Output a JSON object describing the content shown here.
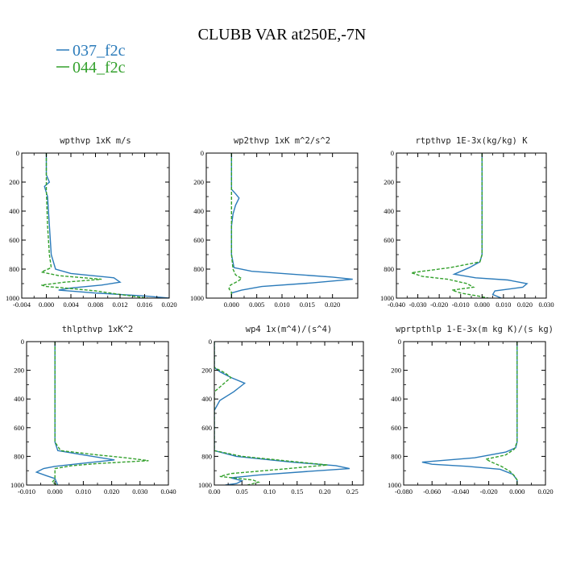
{
  "figure": {
    "title": "CLUBB VAR at250E,-7N",
    "legend": [
      {
        "label": "037_f2c",
        "color": "#2b7bba"
      },
      {
        "label": "044_f2c",
        "color": "#33a02c"
      }
    ]
  },
  "colors": {
    "series_037": "#2b7bba",
    "series_044": "#33a02c",
    "axis": "#000000"
  },
  "chart_data": [
    {
      "type": "line",
      "title": "wpthvp  1xK m/s",
      "xlim": [
        -0.004,
        0.02
      ],
      "ylim": [
        1000,
        0
      ],
      "xticks": [
        -0.004,
        0.0,
        0.004,
        0.008,
        0.012,
        0.016,
        0.02
      ],
      "xtick_labels": [
        "-0.004",
        "0.000",
        "0.004",
        "0.008",
        "0.012",
        "0.016",
        "0.020"
      ],
      "yticks": [
        0,
        200,
        400,
        600,
        800,
        1000
      ],
      "ytick_labels": [
        "0",
        "200",
        "400",
        "600",
        "800",
        "1000"
      ],
      "series": [
        {
          "name": "037_f2c",
          "style": "solid",
          "points": [
            [
              0.0,
              0
            ],
            [
              0.0,
              150
            ],
            [
              0.0005,
              200
            ],
            [
              -0.0003,
              230
            ],
            [
              0.0002,
              300
            ],
            [
              0.0005,
              500
            ],
            [
              0.0008,
              700
            ],
            [
              0.0015,
              800
            ],
            [
              0.004,
              830
            ],
            [
              0.011,
              860
            ],
            [
              0.012,
              890
            ],
            [
              0.009,
              910
            ],
            [
              0.004,
              930
            ],
            [
              0.002,
              945
            ],
            [
              0.008,
              965
            ],
            [
              0.016,
              985
            ],
            [
              0.02,
              1000
            ]
          ]
        },
        {
          "name": "044_f2c",
          "style": "dashed",
          "points": [
            [
              0.0,
              0
            ],
            [
              0.0,
              150
            ],
            [
              0.0,
              250
            ],
            [
              0.0002,
              500
            ],
            [
              0.0005,
              700
            ],
            [
              0.0008,
              790
            ],
            [
              -0.0008,
              820
            ],
            [
              0.002,
              845
            ],
            [
              0.009,
              870
            ],
            [
              0.003,
              890
            ],
            [
              -0.0008,
              910
            ],
            [
              0.0,
              920
            ],
            [
              0.003,
              930
            ],
            [
              0.008,
              950
            ],
            [
              0.012,
              975
            ],
            [
              0.0165,
              1000
            ]
          ]
        }
      ]
    },
    {
      "type": "line",
      "title": "wp2thvp  1xK m^2/s^2",
      "xlim": [
        -0.005,
        0.025
      ],
      "ylim": [
        1000,
        0
      ],
      "xticks": [
        0.0,
        0.005,
        0.01,
        0.015,
        0.02
      ],
      "xtick_labels": [
        "0.000",
        "0.005",
        "0.010",
        "0.015",
        "0.020"
      ],
      "yticks": [
        0,
        200,
        400,
        600,
        800,
        1000
      ],
      "ytick_labels": [
        "0",
        "200",
        "400",
        "600",
        "800",
        "1000"
      ],
      "series": [
        {
          "name": "037_f2c",
          "style": "solid",
          "points": [
            [
              0.0,
              0
            ],
            [
              0.0,
              250
            ],
            [
              0.0008,
              280
            ],
            [
              0.0015,
              310
            ],
            [
              0.0008,
              360
            ],
            [
              0.0003,
              420
            ],
            [
              0.0,
              500
            ],
            [
              0.0,
              700
            ],
            [
              0.0005,
              790
            ],
            [
              0.004,
              815
            ],
            [
              0.012,
              835
            ],
            [
              0.02,
              855
            ],
            [
              0.024,
              870
            ],
            [
              0.016,
              895
            ],
            [
              0.006,
              920
            ],
            [
              0.002,
              945
            ],
            [
              0.0,
              965
            ],
            [
              0.0,
              1000
            ]
          ]
        },
        {
          "name": "044_f2c",
          "style": "dashed",
          "points": [
            [
              0.0,
              0
            ],
            [
              0.0,
              700
            ],
            [
              0.0003,
              800
            ],
            [
              0.0008,
              840
            ],
            [
              0.002,
              865
            ],
            [
              0.0012,
              885
            ],
            [
              -0.0002,
              910
            ],
            [
              -0.0005,
              935
            ],
            [
              0.0,
              960
            ],
            [
              0.0,
              1000
            ]
          ]
        }
      ]
    },
    {
      "type": "line",
      "title": "rtpthvp  1E-3x(kg/kg) K",
      "xlim": [
        -0.04,
        0.03
      ],
      "ylim": [
        1000,
        0
      ],
      "xticks": [
        -0.04,
        -0.03,
        -0.02,
        -0.01,
        0.0,
        0.01,
        0.02,
        0.03
      ],
      "xtick_labels": [
        "-0.040",
        "-0.030",
        "-0.020",
        "-0.010",
        "0.000",
        "0.010",
        "0.020",
        "0.030"
      ],
      "yticks": [
        0,
        200,
        400,
        600,
        800,
        1000
      ],
      "ytick_labels": [
        "0",
        "200",
        "400",
        "600",
        "800",
        "1000"
      ],
      "series": [
        {
          "name": "037_f2c",
          "style": "solid",
          "points": [
            [
              0.0,
              0
            ],
            [
              0.0,
              700
            ],
            [
              -0.001,
              750
            ],
            [
              -0.006,
              790
            ],
            [
              -0.013,
              835
            ],
            [
              -0.003,
              860
            ],
            [
              0.012,
              875
            ],
            [
              0.021,
              900
            ],
            [
              0.019,
              925
            ],
            [
              0.006,
              950
            ],
            [
              0.005,
              975
            ],
            [
              0.009,
              1000
            ]
          ]
        },
        {
          "name": "044_f2c",
          "style": "dashed",
          "points": [
            [
              0.0,
              0
            ],
            [
              0.0,
              700
            ],
            [
              -0.001,
              750
            ],
            [
              -0.015,
              790
            ],
            [
              -0.033,
              825
            ],
            [
              -0.028,
              850
            ],
            [
              -0.016,
              870
            ],
            [
              -0.007,
              900
            ],
            [
              -0.004,
              925
            ],
            [
              -0.014,
              945
            ],
            [
              -0.01,
              965
            ],
            [
              -0.002,
              985
            ],
            [
              0.003,
              1000
            ]
          ]
        }
      ]
    },
    {
      "type": "line",
      "title": "thlpthvp  1xK^2",
      "xlim": [
        -0.01,
        0.04
      ],
      "ylim": [
        1000,
        0
      ],
      "xticks": [
        -0.01,
        0.0,
        0.01,
        0.02,
        0.03,
        0.04
      ],
      "xtick_labels": [
        "-0.010",
        "0.000",
        "0.010",
        "0.020",
        "0.030",
        "0.040"
      ],
      "yticks": [
        0,
        200,
        400,
        600,
        800,
        1000
      ],
      "ytick_labels": [
        "0",
        "200",
        "400",
        "600",
        "800",
        "1000"
      ],
      "series": [
        {
          "name": "037_f2c",
          "style": "solid",
          "points": [
            [
              0.0,
              0
            ],
            [
              0.0,
              700
            ],
            [
              0.001,
              760
            ],
            [
              0.01,
              790
            ],
            [
              0.021,
              825
            ],
            [
              0.009,
              850
            ],
            [
              0.0,
              870
            ],
            [
              -0.004,
              885
            ],
            [
              -0.0065,
              910
            ],
            [
              -0.003,
              935
            ],
            [
              0.0,
              955
            ],
            [
              0.001,
              1000
            ]
          ]
        },
        {
          "name": "044_f2c",
          "style": "dashed",
          "points": [
            [
              0.0,
              0
            ],
            [
              0.0,
              700
            ],
            [
              0.002,
              760
            ],
            [
              0.015,
              790
            ],
            [
              0.025,
              810
            ],
            [
              0.033,
              830
            ],
            [
              0.015,
              850
            ],
            [
              0.006,
              865
            ],
            [
              0.0,
              885
            ],
            [
              0.0,
              960
            ],
            [
              -0.001,
              980
            ],
            [
              0.001,
              1000
            ]
          ]
        }
      ]
    },
    {
      "type": "line",
      "title": "wp4  1x(m^4)/(s^4)",
      "xlim": [
        0.0,
        0.27
      ],
      "ylim": [
        1000,
        0
      ],
      "xticks": [
        0.0,
        0.05,
        0.1,
        0.15,
        0.2,
        0.25
      ],
      "xtick_labels": [
        "0.00",
        "0.05",
        "0.10",
        "0.15",
        "0.20",
        "0.25"
      ],
      "yticks": [
        0,
        200,
        400,
        600,
        800,
        1000
      ],
      "ytick_labels": [
        "0",
        "200",
        "400",
        "600",
        "800",
        "1000"
      ],
      "series": [
        {
          "name": "037_f2c",
          "style": "solid",
          "points": [
            [
              0.0,
              0
            ],
            [
              0.0,
              180
            ],
            [
              0.01,
              210
            ],
            [
              0.03,
              250
            ],
            [
              0.055,
              290
            ],
            [
              0.035,
              350
            ],
            [
              0.01,
              410
            ],
            [
              0.0,
              480
            ],
            [
              0.0,
              760
            ],
            [
              0.04,
              800
            ],
            [
              0.14,
              840
            ],
            [
              0.22,
              865
            ],
            [
              0.245,
              885
            ],
            [
              0.17,
              905
            ],
            [
              0.08,
              930
            ],
            [
              0.03,
              950
            ],
            [
              0.05,
              970
            ],
            [
              0.04,
              990
            ],
            [
              0.02,
              1000
            ]
          ]
        },
        {
          "name": "044_f2c",
          "style": "dashed",
          "points": [
            [
              0.0,
              0
            ],
            [
              0.0,
              180
            ],
            [
              0.02,
              220
            ],
            [
              0.03,
              250
            ],
            [
              0.015,
              300
            ],
            [
              0.0,
              350
            ],
            [
              0.0,
              760
            ],
            [
              0.05,
              800
            ],
            [
              0.14,
              835
            ],
            [
              0.205,
              860
            ],
            [
              0.12,
              890
            ],
            [
              0.03,
              920
            ],
            [
              0.01,
              940
            ],
            [
              0.07,
              965
            ],
            [
              0.08,
              980
            ],
            [
              0.06,
              1000
            ]
          ]
        }
      ]
    },
    {
      "type": "line",
      "title": "wprtpthlp  1-E-3x(m kg K)/(s kg)",
      "xlim": [
        -0.08,
        0.02
      ],
      "ylim": [
        1000,
        0
      ],
      "xticks": [
        -0.08,
        -0.06,
        -0.04,
        -0.02,
        0.0,
        0.02
      ],
      "xtick_labels": [
        "-0.080",
        "-0.060",
        "-0.040",
        "-0.020",
        "0.000",
        "0.020"
      ],
      "yticks": [
        0,
        200,
        400,
        600,
        800,
        1000
      ],
      "ytick_labels": [
        "0",
        "200",
        "400",
        "600",
        "800",
        "1000"
      ],
      "series": [
        {
          "name": "037_f2c",
          "style": "solid",
          "points": [
            [
              0.0,
              0
            ],
            [
              0.0,
              700
            ],
            [
              -0.001,
              740
            ],
            [
              -0.008,
              770
            ],
            [
              -0.03,
              810
            ],
            [
              -0.067,
              840
            ],
            [
              -0.06,
              855
            ],
            [
              -0.035,
              870
            ],
            [
              -0.012,
              890
            ],
            [
              -0.003,
              925
            ],
            [
              0.0,
              965
            ],
            [
              0.0,
              1000
            ]
          ]
        },
        {
          "name": "044_f2c",
          "style": "dashed",
          "points": [
            [
              0.0,
              0
            ],
            [
              0.0,
              700
            ],
            [
              -0.002,
              750
            ],
            [
              -0.008,
              790
            ],
            [
              -0.022,
              820
            ],
            [
              -0.018,
              840
            ],
            [
              -0.011,
              870
            ],
            [
              -0.005,
              905
            ],
            [
              -0.002,
              935
            ],
            [
              0.0,
              965
            ],
            [
              0.0,
              1000
            ]
          ]
        }
      ]
    }
  ]
}
